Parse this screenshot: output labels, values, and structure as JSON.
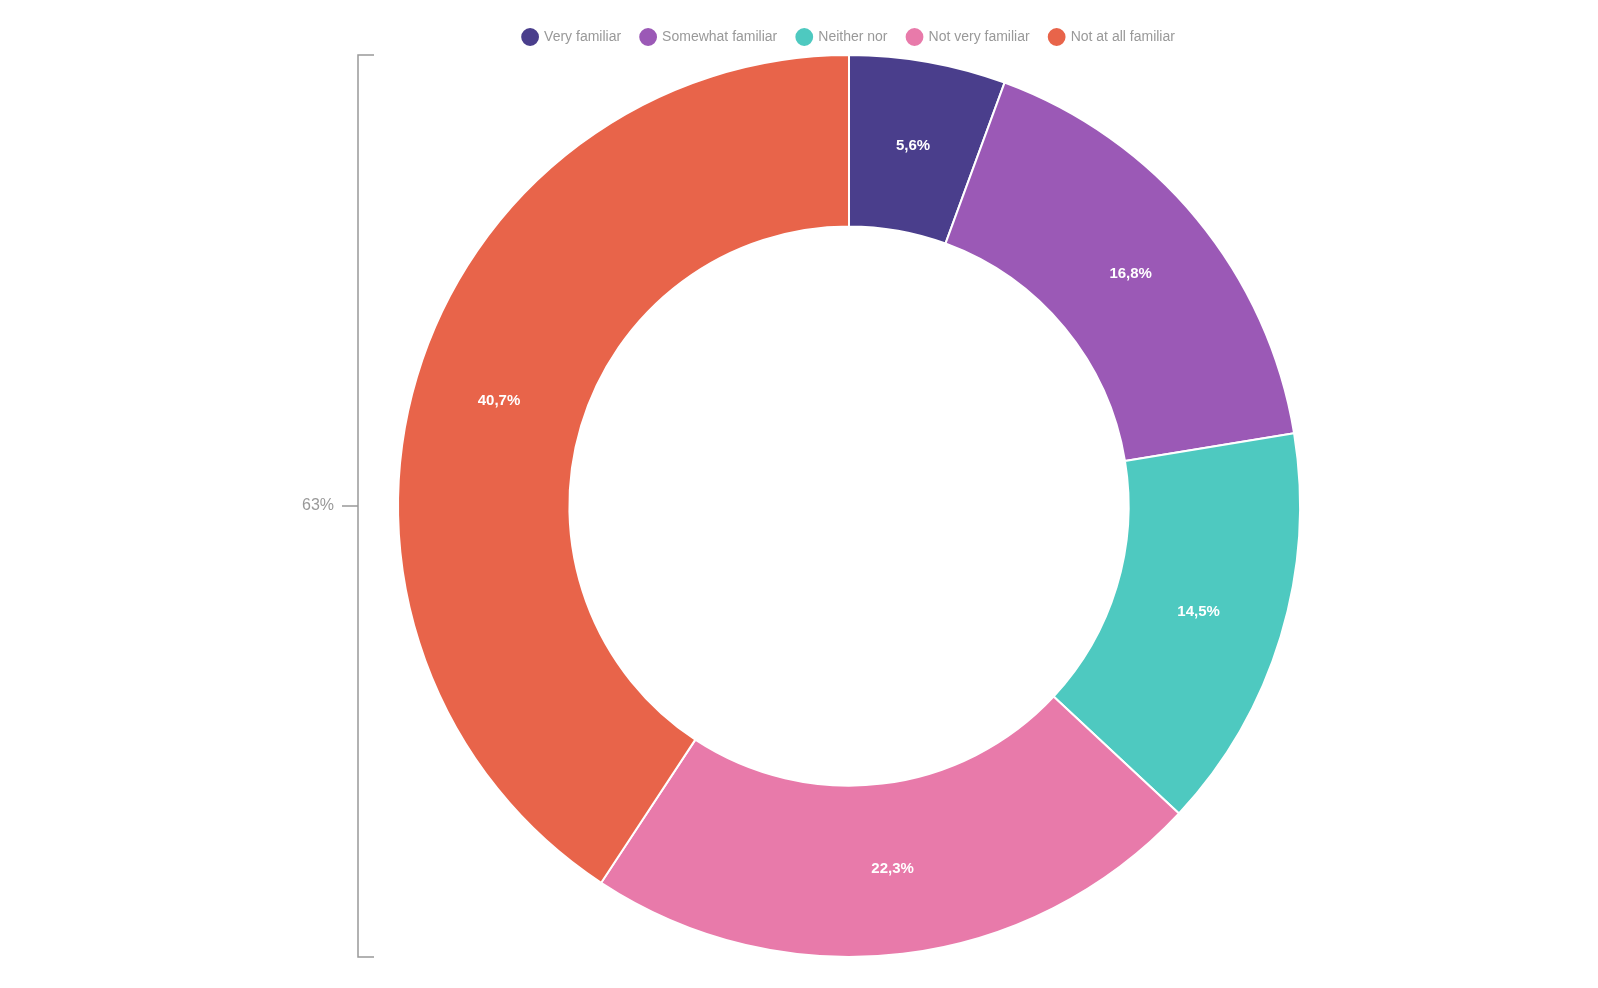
{
  "chart_data": {
    "type": "doughnut",
    "categories": [
      "Very familiar",
      "Somewhat familiar",
      "Neither nor",
      "Not very familiar",
      "Not at all familiar"
    ],
    "values": [
      5.6,
      16.8,
      14.5,
      22.3,
      40.7
    ],
    "value_labels": [
      "5,6%",
      "16,8%",
      "14,5%",
      "22,3%",
      "40,7%"
    ],
    "colors": [
      "#4a3e8c",
      "#9b59b6",
      "#4ec9c0",
      "#e87aaa",
      "#e8644a"
    ],
    "data_labels": true,
    "legend": "top",
    "annotations": [
      {
        "text": "63%",
        "categories": [
          "Not very familiar",
          "Not at all familiar"
        ]
      }
    ]
  }
}
